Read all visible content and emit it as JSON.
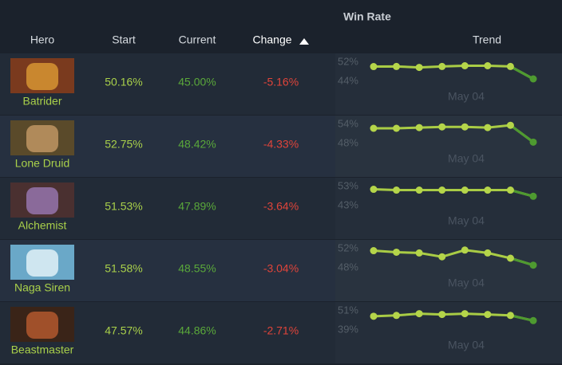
{
  "header": {
    "group": "Win Rate",
    "columns": [
      "Hero",
      "Start",
      "Current",
      "Change",
      "Trend"
    ]
  },
  "rows": [
    {
      "hero": "Batrider",
      "start": "50.16%",
      "current": "45.00%",
      "change": "-5.16%",
      "trend": {
        "ylim": [
          44,
          52
        ],
        "yticks": [
          {
            "value": 52,
            "label": "52%"
          },
          {
            "value": 44,
            "label": "44%"
          }
        ],
        "values": [
          50.16,
          50.2,
          49.8,
          50.2,
          50.5,
          50.5,
          50.2,
          45.0
        ],
        "date": "May 04"
      }
    },
    {
      "hero": "Lone Druid",
      "start": "52.75%",
      "current": "48.42%",
      "change": "-4.33%",
      "trend": {
        "ylim": [
          48,
          54
        ],
        "yticks": [
          {
            "value": 54,
            "label": "54%"
          },
          {
            "value": 48,
            "label": "48%"
          }
        ],
        "values": [
          52.75,
          52.75,
          52.98,
          53.2,
          53.2,
          52.98,
          53.7,
          48.42
        ],
        "date": "May 04"
      }
    },
    {
      "hero": "Alchemist",
      "start": "51.53%",
      "current": "47.89%",
      "change": "-3.64%",
      "trend": {
        "ylim": [
          43,
          53
        ],
        "yticks": [
          {
            "value": 53,
            "label": "53%"
          },
          {
            "value": 43,
            "label": "43%"
          }
        ],
        "values": [
          51.53,
          51.1,
          51.1,
          51.1,
          51.1,
          51.1,
          51.1,
          47.89
        ],
        "date": "May 04"
      }
    },
    {
      "hero": "Naga Siren",
      "start": "51.58%",
      "current": "48.55%",
      "change": "-3.04%",
      "trend": {
        "ylim": [
          48,
          52
        ],
        "yticks": [
          {
            "value": 52,
            "label": "52%"
          },
          {
            "value": 48,
            "label": "48%"
          }
        ],
        "values": [
          51.58,
          51.26,
          51.1,
          50.3,
          51.7,
          51.1,
          50.0,
          48.55
        ],
        "date": "May 04"
      }
    },
    {
      "hero": "Beastmaster",
      "start": "47.57%",
      "current": "44.86%",
      "change": "-2.71%",
      "trend": {
        "ylim": [
          39,
          51
        ],
        "yticks": [
          {
            "value": 51,
            "label": "51%"
          },
          {
            "value": 39,
            "label": "39%"
          }
        ],
        "values": [
          47.57,
          48.1,
          49.2,
          48.7,
          49.2,
          48.7,
          48.1,
          44.86
        ],
        "date": "May 04"
      }
    }
  ]
}
